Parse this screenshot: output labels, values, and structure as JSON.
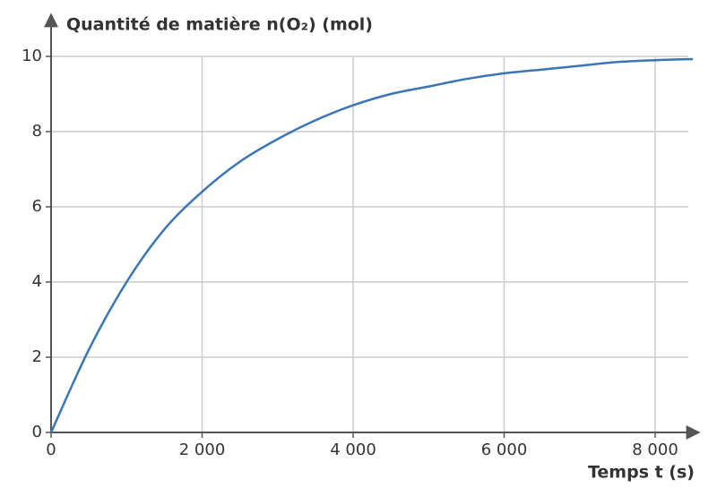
{
  "chart_data": {
    "type": "line",
    "y_label": "Quantité de matière n(O₂) (mol)",
    "x_label": "Temps t (s)",
    "x": [
      0,
      500,
      1000,
      1500,
      2000,
      2500,
      3000,
      3500,
      4000,
      4500,
      5000,
      5500,
      6000,
      6500,
      7000,
      7500,
      8000,
      8500
    ],
    "series": [
      {
        "color": "#3a76b5",
        "values": [
          0,
          2.2,
          4.0,
          5.4,
          6.4,
          7.2,
          7.8,
          8.3,
          8.7,
          9.0,
          9.2,
          9.4,
          9.55,
          9.65,
          9.75,
          9.85,
          9.9,
          9.93
        ]
      }
    ],
    "xlim": [
      0,
      8500
    ],
    "ylim": [
      0,
      11
    ],
    "xticks": [
      0,
      {
        "value": 2000,
        "label": "2 000"
      },
      {
        "value": 4000,
        "label": "4 000"
      },
      {
        "value": 6000,
        "label": "6 000"
      },
      {
        "value": 8000,
        "label": "8 000"
      }
    ],
    "yticks": [
      0,
      2,
      4,
      6,
      8,
      10
    ],
    "grid": true
  }
}
